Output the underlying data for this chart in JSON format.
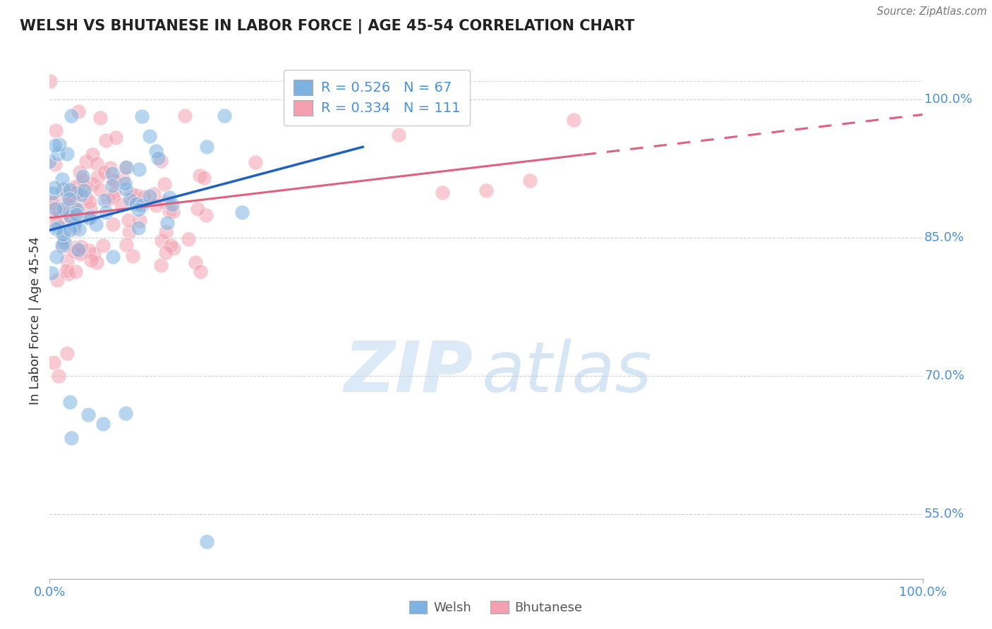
{
  "title": "WELSH VS BHUTANESE IN LABOR FORCE | AGE 45-54 CORRELATION CHART",
  "source": "Source: ZipAtlas.com",
  "ylabel": "In Labor Force | Age 45-54",
  "xlim": [
    0.0,
    1.0
  ],
  "ylim": [
    0.48,
    1.04
  ],
  "xticks": [
    0.0,
    1.0
  ],
  "xticklabels": [
    "0.0%",
    "100.0%"
  ],
  "yticks": [
    0.55,
    0.7,
    0.85,
    1.0
  ],
  "yticklabels": [
    "55.0%",
    "70.0%",
    "85.0%",
    "100.0%"
  ],
  "welsh_color": "#7db3e0",
  "bhutanese_color": "#f4a0b0",
  "welsh_line_color": "#2060c0",
  "bhutanese_line_color": "#e06080",
  "welsh_R": 0.526,
  "welsh_N": 67,
  "bhutanese_R": 0.334,
  "bhutanese_N": 111,
  "background_color": "#ffffff",
  "grid_color": "#cccccc",
  "title_color": "#222222",
  "axis_label_color": "#333333",
  "tick_color": "#4a90d9",
  "watermark_zip_color": "#c0d8f0",
  "watermark_atlas_color": "#a8c8e8"
}
